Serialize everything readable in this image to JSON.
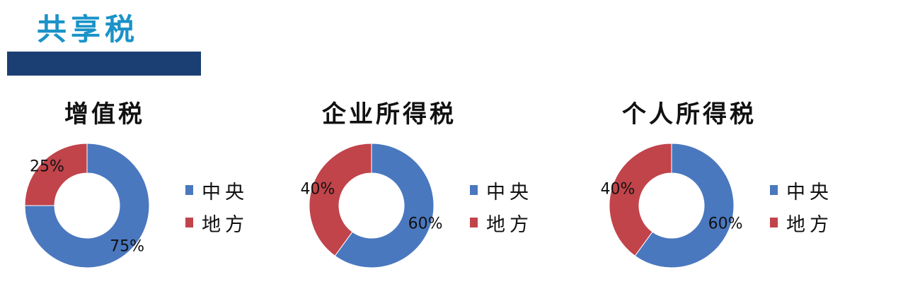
{
  "page_title": "共享税",
  "colors": {
    "central": "#4a78bf",
    "local": "#c0444a",
    "title": "#1a93c8",
    "bar": "#1b3f73"
  },
  "chart_data": [
    {
      "type": "pie",
      "title": "增值税",
      "categories": [
        "中央",
        "地方"
      ],
      "values": [
        75,
        25
      ],
      "value_labels": [
        "75%",
        "25%"
      ],
      "legend": "right"
    },
    {
      "type": "pie",
      "title": "企业所得税",
      "categories": [
        "中央",
        "地方"
      ],
      "values": [
        60,
        40
      ],
      "value_labels": [
        "60%",
        "40%"
      ],
      "legend": "right"
    },
    {
      "type": "pie",
      "title": "个人所得税",
      "categories": [
        "中央",
        "地方"
      ],
      "values": [
        60,
        40
      ],
      "value_labels": [
        "60%",
        "40%"
      ],
      "legend": "right"
    }
  ]
}
